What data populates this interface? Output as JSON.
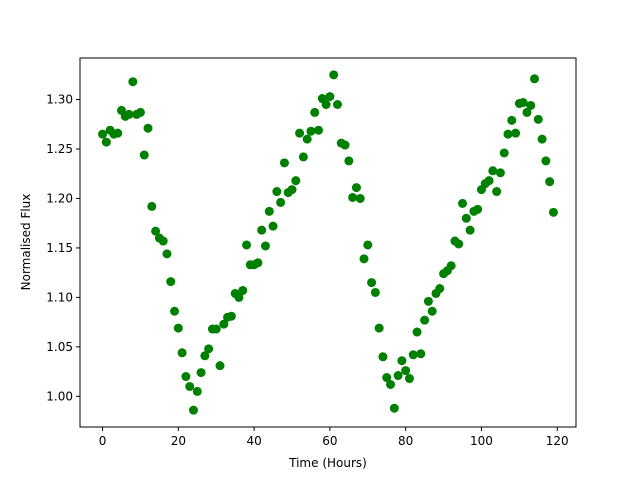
{
  "chart_data": {
    "type": "scatter",
    "x_label": "Time (Hours)",
    "y_label": "Normalised Flux",
    "x": [
      0,
      1,
      2,
      3,
      4,
      5,
      6,
      7,
      8,
      9,
      10,
      11,
      12,
      13,
      14,
      15,
      16,
      17,
      18,
      19,
      20,
      21,
      22,
      23,
      24,
      25,
      26,
      27,
      28,
      29,
      30,
      31,
      32,
      33,
      34,
      35,
      36,
      37,
      38,
      39,
      40,
      41,
      42,
      43,
      44,
      45,
      46,
      47,
      48,
      49,
      50,
      51,
      52,
      53,
      54,
      55,
      56,
      57,
      58,
      59,
      60,
      61,
      62,
      63,
      64,
      65,
      66,
      67,
      68,
      69,
      70,
      71,
      72,
      73,
      74,
      75,
      76,
      77,
      78,
      79,
      80,
      81,
      82,
      83,
      84,
      85,
      86,
      87,
      88,
      89,
      90,
      91,
      92,
      93,
      94,
      95,
      96,
      97,
      98,
      99,
      100,
      101,
      102,
      103,
      104,
      105,
      106,
      107,
      108,
      109,
      110,
      111,
      112,
      113,
      114,
      115,
      116,
      117,
      118,
      119
    ],
    "values": [
      1.265,
      1.257,
      1.269,
      1.265,
      1.266,
      1.289,
      1.283,
      1.285,
      1.318,
      1.285,
      1.287,
      1.244,
      1.271,
      1.192,
      1.167,
      1.16,
      1.157,
      1.144,
      1.116,
      1.086,
      1.069,
      1.044,
      1.02,
      1.01,
      0.986,
      1.005,
      1.024,
      1.041,
      1.048,
      1.068,
      1.068,
      1.031,
      1.073,
      1.08,
      1.081,
      1.104,
      1.1,
      1.107,
      1.153,
      1.133,
      1.133,
      1.135,
      1.168,
      1.152,
      1.187,
      1.172,
      1.207,
      1.196,
      1.236,
      1.206,
      1.209,
      1.218,
      1.266,
      1.242,
      1.26,
      1.268,
      1.287,
      1.269,
      1.301,
      1.295,
      1.303,
      1.325,
      1.295,
      1.256,
      1.254,
      1.238,
      1.201,
      1.211,
      1.2,
      1.139,
      1.153,
      1.115,
      1.105,
      1.069,
      1.04,
      1.019,
      1.012,
      0.988,
      1.021,
      1.036,
      1.026,
      1.018,
      1.042,
      1.065,
      1.043,
      1.077,
      1.096,
      1.086,
      1.104,
      1.109,
      1.124,
      1.127,
      1.132,
      1.157,
      1.154,
      1.195,
      1.18,
      1.168,
      1.187,
      1.189,
      1.209,
      1.215,
      1.218,
      1.228,
      1.207,
      1.226,
      1.246,
      1.265,
      1.279,
      1.266,
      1.296,
      1.297,
      1.287,
      1.294,
      1.321,
      1.28,
      1.26,
      1.238,
      1.217,
      1.186
    ],
    "color": "green",
    "xlim": [
      -5.95,
      124.95
    ],
    "ylim": [
      0.969,
      1.342
    ],
    "xticks": [
      0,
      20,
      40,
      60,
      80,
      100,
      120
    ],
    "yticks": [
      {
        "value": 1.0,
        "label": "1.00"
      },
      {
        "value": 1.05,
        "label": "1.05"
      },
      {
        "value": 1.1,
        "label": "1.10"
      },
      {
        "value": 1.15,
        "label": "1.15"
      },
      {
        "value": 1.2,
        "label": "1.20"
      },
      {
        "value": 1.25,
        "label": "1.25"
      },
      {
        "value": 1.3,
        "label": "1.30"
      }
    ]
  }
}
